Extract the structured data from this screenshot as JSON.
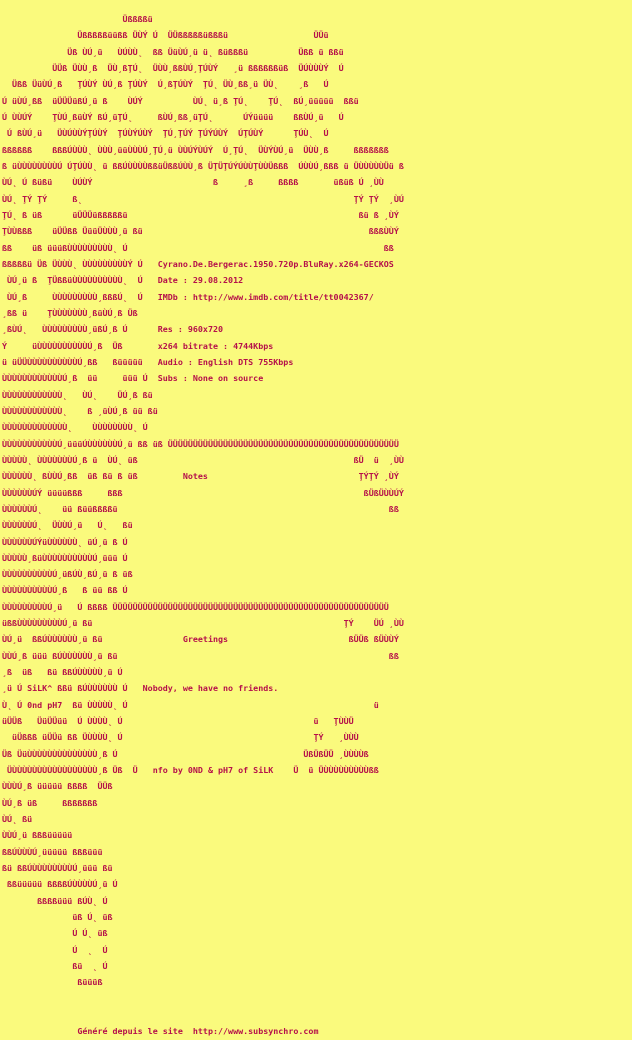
{
  "page": {
    "background_color": "#fafa7d",
    "text_color": "#b5104a"
  },
  "release": {
    "name": "Cyrano.De.Bergerac.1950.720p.BluRay.x264-GECKOS",
    "group": "GECKOS",
    "date_label": "Date :",
    "date": "29.08.2012",
    "imdb_label": "IMDb :",
    "imdb_url": "http://www.imdb.com/title/tt0042367/",
    "res_label": "Res :",
    "res": "960x720",
    "x264_bitrate_label": "x264 bitrate :",
    "x264_bitrate": "4744Kbps",
    "audio_label": "Audio :",
    "audio": "English DTS 755Kbps",
    "subs_label": "Subs :",
    "subs": "None on source",
    "notes_label": "Notes",
    "greetings_label": "Greetings",
    "greeting_text": "Nobody, we have no friends.",
    "nfo_credit": "nfo by 0ND & pH7 of SiLK",
    "art_group_tag": "SiLK^ 0nd pH7"
  },
  "footer": {
    "text": "Généré depuis le site  http://www.subsynchro.com",
    "site_url": "http://www.subsynchro.com"
  },
  "nfo": {
    "lines": [
      "                        Üßßßßü",
      "               Üßßßßßüüßß ÜÙÝ Ú  ÜÜßßßßßüßßßü                 ÜÜü",
      "             Üß ÙÚ¸ü   ÙÚÙÙ˛  ßß ÜüÙÚ¸ü ü˛ ßüßßßü          Üßß ü ßßü",
      "          ÜÜß ÜÙÙ¸ß  ÜÙ¸ßŢÚ˛  ÜÙÙ¸ßßÙÚ¸ŢÚÙÝ   ¸ü ßßßßßßüß  ÜÚÙÙÙÝ  Ú",
      "  Üßß ÜüÙÚ¸ß   ŢÚÙÝ ÙÚ¸ß ŢÚÙÝ  Ú¸ßŢÚÙÝ  ŢÚ˛ ÜÙ¸ßß¸ü ÜÙ˛    ¸ß   Ú",
      "Ú üÙÚ¸ßß  üÜÜÜüßÚ¸ü ß    ÙÚÝ          ÙÚ˛ ü¸ß ŢÚ˛    ŢÚ˛  ßÚ¸üüüüü  ßßü",
      "Ú ÙÙÚÝ    ŢÙÚ¸ßüÙÝ ßÚ¸üŢÚ˛     ßÙÚ¸ßß¸üŢÚ˛      ÚÝüüüü    ßßÙÚ¸ü   Ú",
      " Ú ßÙÚ¸ü   ÜÙÚÙÙÝŢÚÙÝ  ŢÚÙÝÚÙÝ  ŢÚ¸ŢÚÝ ŢÚÝÚÙÝ  ÚŢÚÙÝ      ŢÚÙ˛  Ú",
      "ßßßßßß    ßßßÚÙÙÙ˛ ÙÙÙ¸üüÙÙÙÚ¸ŢÚ¸ü ÙÙÚÝÙÚÝ  Ú¸ŢÚ˛  ÜÙÝÙÚ¸ü  ÜÙÙ¸ß     ßßßßßßß",
      "ß üÙÙÙÙÙÙÙÙÚ ÚŢÚÙÙ˛ ü ßßÚÙÙÙÙßßüÜßßÚÙÙ¸ß ÜŢÜŢÚÝÚÙÙŢÙÙÜßßß  ÚÙÙÚ¸ßßß ü ÜÙÙÙÙÙÜü ß",
      "ÙÚ˛ Ú ßüßü    ÙÚÙÝ                        ß     ¸ß     ßßßß       üßüß Ú ¸ÙÙ",
      "ÙÚ˛ ŢÝ ŢÝ     ß˛                                                      ŢÝ ŢÝ  ¸ÙÚ",
      "ŢÚ˛ ß üß      üÜÜÜüßßßßßü                                              ßü ß ¸ÙÝ",
      "ŢÙÙßßß    üÜÜßß ÜüüÜÙÙÙ¸ü ßü                                             ßßßÙÙÝ",
      "ßß    üß üüüßÙÙÙÙÙÙÙÙÙ˛ Ú                                                   ßß",
      "ßßßßßü Üß ÜÙÙÙ˛ ÙÙÙÙÙÙÙÙÙÝ Ú   Cyrano.De.Bergerac.1950.720p.BluRay.x264-GECKOS",
      " ÙÚ¸ü ß  ŢÜßßüÙÙÙÙÙÙÙÙÙÙ˛  Ú   Date : 29.08.2012",
      " ÙÚ¸ß     ÙÙÙÙÙÙÙÙÙ¸ßßßÚ˛  Ú   IMDb : http://www.imdb.com/title/tt0042367/",
      "¸ßß ü    ŢÙÙÙÙÙÙÙ¸ßüÙÚ¸ß Üß",
      "¸ßÙÚ˛   ÙÙÙÙÙÙÙÙÙ¸üßÚ¸ß Ú      Res : 960x720",
      "Ý     üÙÙÙÙÙÙÙÙÙÙÚ¸ß  Üß       x264 bitrate : 4744Kbps",
      "ü üÜÜÙÙÙÙÙÙÙÙÙÙÚ¸ßß   ßüüüüü   Audio : English DTS 755Kbps",
      "ÙÙÙÙÙÙÙÙÙÙÙÙÚ¸ß  üü     üüü Ú  Subs : None on source",
      "ÙÙÙÙÙÙÙÙÙÙÙÙ˛   ÙÚ˛    ÜÚ¸ß ßü",
      "ÙÙÙÙÙÙÙÙÙÙÙÙ˛    ß ¸üÙÚ¸ß üü ßü",
      "ÙÙÙÙÙÙÙÙÙÙÙÙÙ˛    ÙÙÙÙÙÙÙÙ˛ Ú",
      "ÙÙÙÙÙÙÙÙÙÙÙÚ¸üüüÚÙÙÙÙÙÙÚ¸ü ßß üß ÜÜÜÜÜÜÜÜÜÜÜÜÜÜÜÜÜÜÜÜÜÜÜÜÜÜÜÜÜÜÜÜÜÜÜÜÜÜÜÜÜÜÜÜÜÜ",
      "ÙÙÙÙÙ˛ ÙÙÙÙÙÙÙÚ¸ß ü  ÙÚ˛ üß                                           ßÜ  ü  ¸ÙÙ",
      "ÙÙÙÙÙÙ˛ ßÙÙÚ¸ßß  üß ßü ß üß         Notes                              ŢÝŢÝ ¸ÙÝ",
      "ÙÙÙÙÙÙÚÝ üüüüßßß     ßßß                                                ßÜßÜÙÙÚÝ",
      "ÙÙÙÙÙÙÚ˛    üü ßüüßßßßü                                                      ßß",
      "ÙÙÙÙÙÙÚ˛  ÜÙÙÚ¸ü   Ú˛   ßü",
      "ÙÙÙÙÙÙÚÝüÙÙÙÙÙÙ˛ üÚ¸ü ß Ú",
      "ÙÙÙÙÙ¸ßüÙÙÙÙÙÙÙÙÙÙÚ¸üüü Ú",
      "ÙÙÙÙÙÙÙÙÙÙÚ¸üßÚÙ¸ßÚ¸ü ß üß",
      "ÙÙÙÙÙÙÙÙÙÙÚ¸ß   ß üü ßß Ú",
      "ÙÙÙÙÙÙÙÙÙÚ¸ü   Ú ßßßß ÜÜÜÜÜÜÜÜÜÜÜÜÜÜÜÜÜÜÜÜÜÜÜÜÜÜÜÜÜÜÜÜÜÜÜÜÜÜÜÜÜÜÜÜÜÜÜÜÜÜÜÜÜÜÜ",
      "üßßÙÙÙÙÙÙÙÙÙÚ¸ü ßü                                                  ŢÝ    ÜÚ ¸ÙÙ",
      "ÙÚ¸ü  ßßÚÙÙÙÙÙÙ¸ü ßü                Greetings                        ßÜÜß ßÜÙÙÝ",
      "ÙÙÚ¸ß üüü ßÚÙÙÙÙÙÙ¸ü ßü                                                      ßß",
      "¸ß  üß   ßü ßßÚÙÙÙÙÙ¸ü Ú",
      "¸ü Ú SiLK^ ßßü ßÚÙÙÙÙÙÙ Ú   Nobody, we have no friends.",
      "Ù˛ Ú 0nd pH7  ßü ÙÙÙÙÙ˛ Ú                                                 ü",
      "üÜÜß   ÜüÜÜüü  Ú ÙÙÙÙ˛ Ú                                      ü   ŢÙÙÜ",
      "  üÜßßß üÜÜü ßß ÜÙÙÙÙ˛ Ú                                      ŢÝ   ¸ÙÙÙ",
      "Üß ÜüÙÙÙÙÙÙÙÙÙÙÙÙÙÙ¸ß Ú                                     ÜßÜßÜÜ ¸ÙÙÙÙß",
      " ÜÙÙÙÙÙÙÙÙÙÙÙÙÙÙÙÙÙ¸ß Üß  Ü   nfo by 0ND & pH7 of SiLK    Ü  ü ÜÙÙÙÙÙÙÙÙÙßß",
      "ÙÙÙÚ¸ß üüüüü ßßßß  ÜÜß",
      "ÙÚ¸ß üß     ßßßßßßß",
      "ÙÚ˛ ßü",
      "ÙÙÚ¸ü ßßßüüüüü",
      "ßßÚÙÙÙÚ¸üüüüü ßßßüüü",
      "ßü ßßÚÙÙÙÙÙÙÙÙÚ¸üüü ßü",
      " ßßüüüüü ßßßßÚÙÙÙÙÚ¸ü Ú",
      "       ßßßßüüü ßÚÙ˛ Ú",
      "              üß Ú˛ üß",
      "              Ú Ú˛ üß",
      "              Ú  ˛  Ú",
      "              ßü  ˛ Ú",
      "               ßüüüß",
      "",
      "",
      "               Généré depuis le site  http://www.subsynchro.com"
    ]
  }
}
